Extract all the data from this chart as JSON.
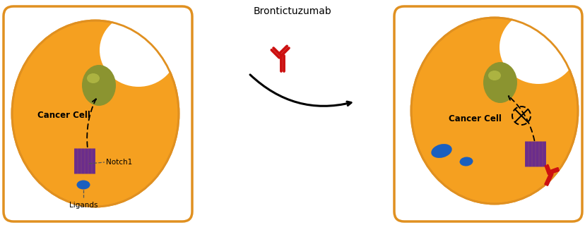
{
  "bg_color": "#ffffff",
  "border_color": "#E09020",
  "cell_color": "#F5A020",
  "cell_color2": "#FAB535",
  "nucleus_color": "#8B9430",
  "nucleus_highlight": "#C8CE50",
  "notch_color": "#6B2D8B",
  "ligand_color": "#1A5FBF",
  "antibody_color": "#CC1010",
  "title_text": "Brontictuzumab",
  "cancer_cell_text": "Cancer Cell",
  "notch1_text": "Notch1",
  "ligands_text": "Ligands",
  "fig_width": 8.29,
  "fig_height": 3.19,
  "dpi": 100
}
